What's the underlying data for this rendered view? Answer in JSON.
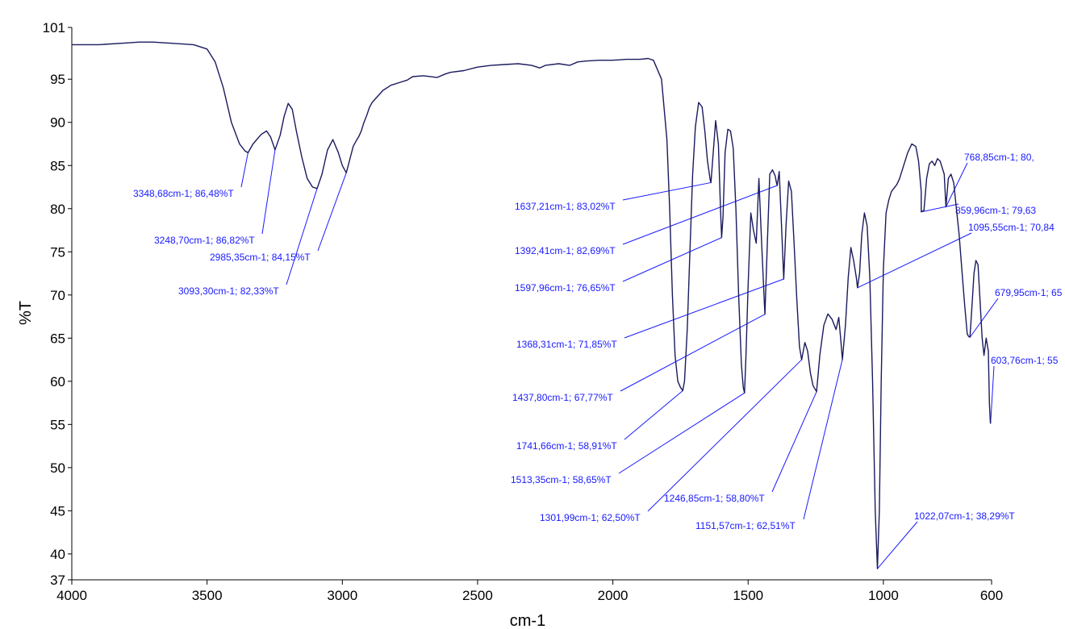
{
  "chart_data": {
    "type": "line",
    "title": "",
    "xlabel": "cm-1",
    "ylabel": "%T",
    "xlim": [
      4000,
      600
    ],
    "ylim": [
      37,
      101
    ],
    "x_reversed": true,
    "grid": false,
    "x_ticks": [
      4000,
      3500,
      3000,
      2500,
      2000,
      1500,
      1000,
      600
    ],
    "y_ticks": [
      37,
      40,
      45,
      50,
      55,
      60,
      65,
      70,
      75,
      80,
      85,
      90,
      95,
      101
    ],
    "series": [
      {
        "color": "#1a1a5e",
        "x": [
          4000,
          3900,
          3800,
          3750,
          3700,
          3600,
          3550,
          3500,
          3470,
          3440,
          3410,
          3380,
          3360,
          3348.68,
          3330,
          3300,
          3280,
          3265,
          3248.7,
          3230,
          3215,
          3200,
          3185,
          3170,
          3150,
          3130,
          3110,
          3093.3,
          3075,
          3055,
          3035,
          3015,
          3000,
          2985.35,
          2970,
          2960,
          2950,
          2940,
          2930,
          2920,
          2910,
          2900,
          2890,
          2870,
          2850,
          2820,
          2790,
          2760,
          2740,
          2700,
          2650,
          2620,
          2600,
          2550,
          2500,
          2450,
          2400,
          2350,
          2300,
          2270,
          2250,
          2200,
          2160,
          2130,
          2100,
          2050,
          2000,
          1950,
          1900,
          1870,
          1850,
          1820,
          1800,
          1790,
          1780,
          1770,
          1760,
          1750,
          1741.66,
          1735,
          1725,
          1715,
          1705,
          1695,
          1683,
          1670,
          1660,
          1650,
          1640,
          1637.21,
          1630,
          1620,
          1610,
          1602,
          1597.96,
          1593,
          1585,
          1575,
          1565,
          1555,
          1545,
          1535,
          1525,
          1518,
          1513.35,
          1508,
          1500,
          1490,
          1480,
          1470,
          1460,
          1450,
          1440,
          1437.8,
          1430,
          1420,
          1410,
          1400,
          1395,
          1392.41,
          1385,
          1375,
          1368.31,
          1360,
          1350,
          1340,
          1330,
          1320,
          1310,
          1301.99,
          1290,
          1280,
          1270,
          1260,
          1246.85,
          1235,
          1220,
          1205,
          1190,
          1175,
          1165,
          1158,
          1151.57,
          1140,
          1130,
          1120,
          1110,
          1100,
          1095.55,
          1088,
          1080,
          1070,
          1060,
          1050,
          1040,
          1030,
          1022.07,
          1015,
          1008,
          1000,
          990,
          980,
          970,
          960,
          950,
          940,
          925,
          910,
          895,
          880,
          870,
          860,
          859.96,
          850,
          840,
          830,
          820,
          810,
          800,
          790,
          780,
          775,
          768.85,
          760,
          750,
          740,
          730,
          720,
          710,
          700,
          690,
          685,
          679.95,
          672,
          665,
          658,
          650,
          642,
          635,
          628,
          620,
          612,
          608,
          605,
          603.76
        ],
        "y": [
          99,
          99,
          99.2,
          99.3,
          99.3,
          99.1,
          99,
          98.5,
          97,
          94,
          90,
          87.5,
          86.7,
          86.48,
          87.5,
          88.6,
          89,
          88.3,
          86.82,
          88.5,
          90.7,
          92.2,
          91.5,
          89,
          86,
          83.5,
          82.5,
          82.33,
          84,
          86.8,
          88,
          86.5,
          85,
          84.15,
          86,
          87.2,
          87.8,
          88.3,
          89,
          90,
          90.8,
          91.7,
          92.3,
          93,
          93.7,
          94.3,
          94.6,
          94.9,
          95.3,
          95.4,
          95.2,
          95.6,
          95.8,
          96,
          96.4,
          96.6,
          96.7,
          96.8,
          96.6,
          96.3,
          96.6,
          96.8,
          96.6,
          97,
          97.1,
          97.2,
          97.2,
          97.3,
          97.3,
          97.4,
          97.2,
          95,
          88,
          80,
          70,
          63,
          60,
          59.3,
          58.91,
          60,
          66,
          75,
          84,
          89.5,
          92.3,
          91.8,
          89,
          85.5,
          83.3,
          83.02,
          86,
          90.2,
          87.5,
          80,
          76.65,
          79,
          86.5,
          89.2,
          89,
          87,
          80,
          70,
          62,
          59.3,
          58.65,
          63,
          71,
          79.5,
          77.5,
          76,
          83.5,
          76,
          69,
          67.77,
          75,
          84,
          84.5,
          83.8,
          83,
          82.69,
          84.3,
          77,
          71.85,
          78,
          83.2,
          82,
          76,
          69.5,
          64,
          62.5,
          64.5,
          63.5,
          61,
          59.5,
          58.8,
          63,
          66.5,
          67.8,
          67.2,
          66,
          67.4,
          65,
          62.51,
          66.5,
          72,
          75.5,
          74,
          72,
          70.84,
          72.5,
          77,
          79.5,
          78,
          72,
          60,
          45,
          38.29,
          45,
          60,
          73,
          79.5,
          81,
          82,
          82.4,
          82.8,
          83.5,
          85,
          86.5,
          87.5,
          87.2,
          85.5,
          82,
          79.63,
          79.8,
          83.5,
          85.2,
          85.5,
          85,
          85.8,
          85.5,
          84.5,
          84,
          80.2,
          83.5,
          84,
          83,
          80,
          77,
          73,
          69,
          65.5,
          65.2,
          65.1,
          69,
          72.5,
          74,
          73.5,
          69,
          65,
          63,
          65,
          63.5,
          57.5,
          55.5,
          55.1
        ]
      }
    ],
    "annotations": [
      {
        "text": "3348,68cm-1; 86,48%T",
        "x": 3348.68,
        "y": 86.48
      },
      {
        "text": "3248,70cm-1; 86,82%T",
        "x": 3248.7,
        "y": 86.82
      },
      {
        "text": "3093,30cm-1; 82,33%T",
        "x": 3093.3,
        "y": 82.33
      },
      {
        "text": "2985,35cm-1; 84,15%T",
        "x": 2985.35,
        "y": 84.15
      },
      {
        "text": "1637,21cm-1; 83,02%T",
        "x": 1637.21,
        "y": 83.02
      },
      {
        "text": "1392,41cm-1; 82,69%T",
        "x": 1392.41,
        "y": 82.69
      },
      {
        "text": "1597,96cm-1; 76,65%T",
        "x": 1597.96,
        "y": 76.65
      },
      {
        "text": "1368,31cm-1; 71,85%T",
        "x": 1368.31,
        "y": 71.85
      },
      {
        "text": "1437,80cm-1; 67,77%T",
        "x": 1437.8,
        "y": 67.77
      },
      {
        "text": "1741,66cm-1; 58,91%T",
        "x": 1741.66,
        "y": 58.91
      },
      {
        "text": "1513,35cm-1; 58,65%T",
        "x": 1513.35,
        "y": 58.65
      },
      {
        "text": "1301,99cm-1; 62,50%T",
        "x": 1301.99,
        "y": 62.5
      },
      {
        "text": "1246,85cm-1; 58,80%T",
        "x": 1246.85,
        "y": 58.8
      },
      {
        "text": "1151,57cm-1; 62,51%T",
        "x": 1151.57,
        "y": 62.51
      },
      {
        "text": "1022,07cm-1; 38,29%T",
        "x": 1022.07,
        "y": 38.29
      },
      {
        "text": "768,85cm-1; 80,",
        "x": 768.85,
        "y": 80.2
      },
      {
        "text": "859,96cm-1; 79,63",
        "x": 859.96,
        "y": 79.63
      },
      {
        "text": "1095,55cm-1; 70,84",
        "x": 1095.55,
        "y": 70.84
      },
      {
        "text": "679,95cm-1; 65",
        "x": 679.95,
        "y": 65.1
      },
      {
        "text": "603,76cm-1; 55",
        "x": 603.76,
        "y": 55.1
      }
    ]
  },
  "colors": {
    "spectrum": "#1a1a5e",
    "annotation": "#1a1aff",
    "axis": "#000000"
  }
}
